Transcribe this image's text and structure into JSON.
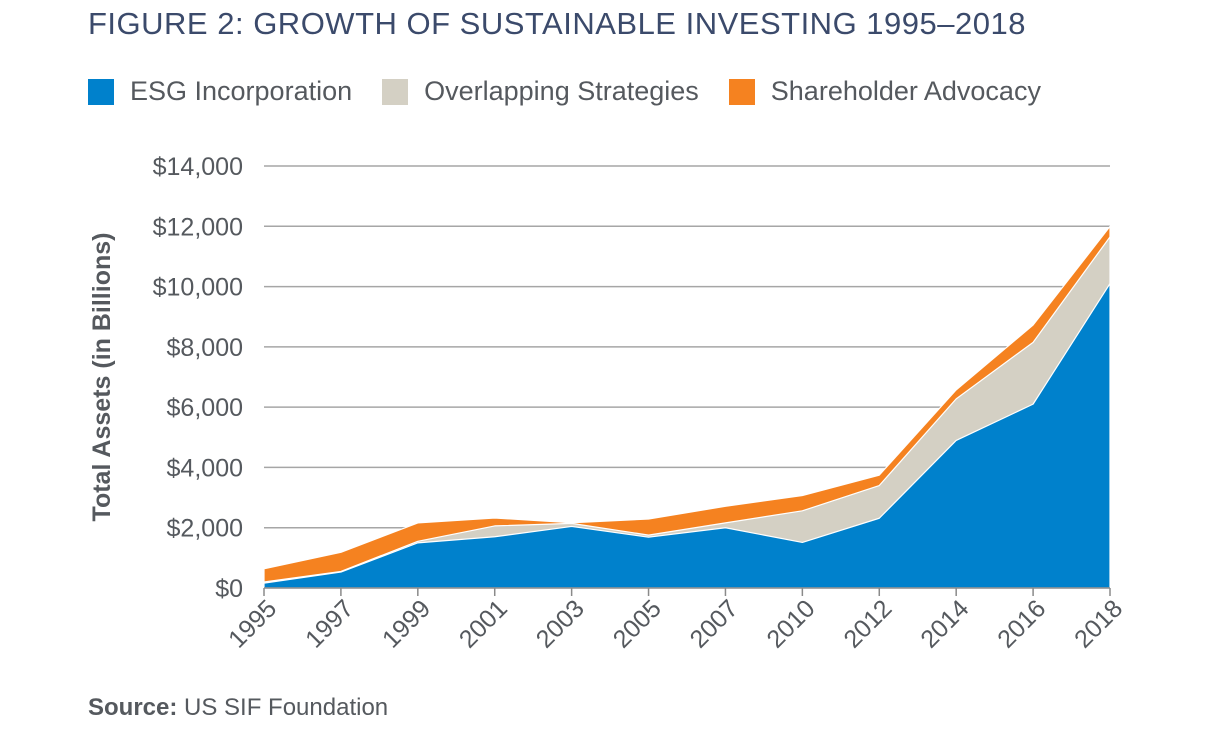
{
  "title": "FIGURE 2: GROWTH OF SUSTAINABLE INVESTING 1995–2018",
  "source": {
    "label": "Source:",
    "text": "US SIF Foundation"
  },
  "colors": {
    "esg": "#0081cc",
    "overlap": "#d4d0c4",
    "advocacy": "#f58220",
    "grid": "#a6a6a6",
    "text": "#55595e",
    "title": "#3b4a6b"
  },
  "chart_data": {
    "type": "area",
    "stacked": true,
    "title": "FIGURE 2: GROWTH OF SUSTAINABLE INVESTING 1995–2018",
    "ylabel": "Total Assets (in Billions)",
    "xlabel": "",
    "ylim": [
      0,
      14000
    ],
    "yticks": [
      0,
      2000,
      4000,
      6000,
      8000,
      10000,
      12000,
      14000
    ],
    "ytick_labels": [
      "$0",
      "$2,000",
      "$4,000",
      "$6,000",
      "$8,000",
      "$10,000",
      "$12,000",
      "$14,000"
    ],
    "categories": [
      "1995",
      "1997",
      "1999",
      "2001",
      "2003",
      "2005",
      "2007",
      "2010",
      "2012",
      "2014",
      "2016",
      "2018"
    ],
    "grid": true,
    "legend_position": "top",
    "series": [
      {
        "name": "ESG Incorporation",
        "color": "#0081cc",
        "values": [
          162,
          529,
          1497,
          2010,
          2143,
          1685,
          2098,
          2512,
          3314,
          6195,
          8100,
          11600
        ]
      },
      {
        "name": "Overlapping Strategies",
        "color": "#d4d0c4",
        "values": [
          200,
          550,
          1550,
          2060,
          2143,
          1755,
          2160,
          2560,
          3400,
          6275,
          8150,
          11650
        ]
      },
      {
        "name": "Shareholder Advocacy",
        "color": "#f58220",
        "values": [
          639,
          1185,
          2159,
          2323,
          2164,
          2290,
          2711,
          3069,
          3744,
          6572,
          8723,
          11995
        ]
      }
    ],
    "esg_layer": [
      162,
      529,
      1497,
      1700,
      2043,
      1685,
      1998,
      1512,
      2314,
      4895,
      6100,
      10100
    ]
  }
}
